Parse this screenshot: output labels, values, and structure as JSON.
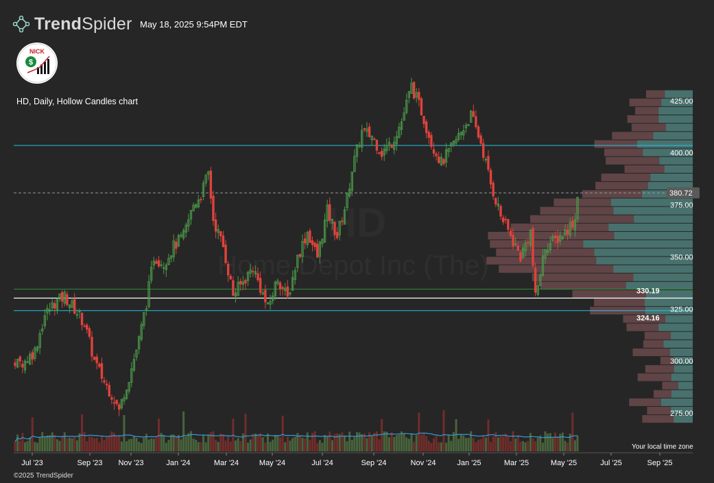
{
  "header": {
    "brand_light": "Trend",
    "brand_regular": "Spider",
    "timestamp": "May 18, 2025 9:54PM EDT"
  },
  "avatar": {
    "text": "NICK"
  },
  "chart_title": "HD, Daily, Hollow Candles chart",
  "footer": {
    "copyright": "©2025 TrendSpider",
    "timezone_note": "Your local time zone"
  },
  "colors": {
    "background": "#262626",
    "up": "#4c9a4a",
    "down": "#e0423d",
    "cyan_line": "#27c1e6",
    "green_line": "#2e8f3b",
    "white_line": "#ffffff",
    "volume_ma": "#3a9ad9"
  },
  "chart_data": {
    "type": "candlestick",
    "symbol": "HD",
    "watermark": "Home Depot Inc (The)",
    "x_ticks": [
      "Jul '23",
      "Sep '23",
      "Nov '23",
      "Jan '24",
      "Mar '24",
      "May '24",
      "Jul '24",
      "Sep '24",
      "Nov '24",
      "Jan '25",
      "Mar '25",
      "May '25",
      "Jul '25",
      "Sep '25"
    ],
    "y_ticks": [
      275,
      300,
      325,
      350,
      375,
      400,
      425
    ],
    "ylim": [
      268,
      440
    ],
    "last_price": 380.72,
    "horizontal_levels": [
      {
        "price": 403.5,
        "style": "cyan",
        "label": ""
      },
      {
        "price": 380.72,
        "style": "dashed",
        "label": ""
      },
      {
        "price": 334.5,
        "style": "green",
        "label": ""
      },
      {
        "price": 330.19,
        "style": "white",
        "label": "330.19"
      },
      {
        "price": 324.16,
        "style": "cyan",
        "label": "324.16"
      }
    ],
    "price_path_anchors": [
      [
        0,
        298
      ],
      [
        4,
        300
      ],
      [
        8,
        305
      ],
      [
        12,
        322
      ],
      [
        16,
        328
      ],
      [
        20,
        331
      ],
      [
        24,
        325
      ],
      [
        28,
        318
      ],
      [
        32,
        300
      ],
      [
        36,
        290
      ],
      [
        40,
        282
      ],
      [
        42,
        276
      ],
      [
        44,
        285
      ],
      [
        46,
        292
      ],
      [
        50,
        310
      ],
      [
        53,
        328
      ],
      [
        56,
        350
      ],
      [
        60,
        347
      ],
      [
        64,
        355
      ],
      [
        68,
        360
      ],
      [
        72,
        375
      ],
      [
        75,
        380
      ],
      [
        78,
        390
      ],
      [
        80,
        368
      ],
      [
        84,
        355
      ],
      [
        88,
        332
      ],
      [
        92,
        338
      ],
      [
        96,
        345
      ],
      [
        100,
        332
      ],
      [
        102,
        325
      ],
      [
        106,
        340
      ],
      [
        110,
        330
      ],
      [
        114,
        350
      ],
      [
        118,
        362
      ],
      [
        122,
        350
      ],
      [
        126,
        372
      ],
      [
        130,
        360
      ],
      [
        134,
        378
      ],
      [
        136,
        392
      ],
      [
        140,
        410
      ],
      [
        144,
        408
      ],
      [
        148,
        400
      ],
      [
        152,
        405
      ],
      [
        156,
        415
      ],
      [
        160,
        432
      ],
      [
        164,
        420
      ],
      [
        168,
        405
      ],
      [
        172,
        395
      ],
      [
        176,
        402
      ],
      [
        180,
        410
      ],
      [
        184,
        418
      ],
      [
        188,
        405
      ],
      [
        192,
        385
      ],
      [
        196,
        370
      ],
      [
        200,
        360
      ],
      [
        204,
        350
      ],
      [
        208,
        362
      ],
      [
        210,
        330
      ],
      [
        214,
        355
      ],
      [
        218,
        358
      ],
      [
        222,
        362
      ],
      [
        226,
        368
      ],
      [
        227,
        380.72
      ]
    ],
    "volume_profile_range": [
      270,
      430
    ]
  }
}
